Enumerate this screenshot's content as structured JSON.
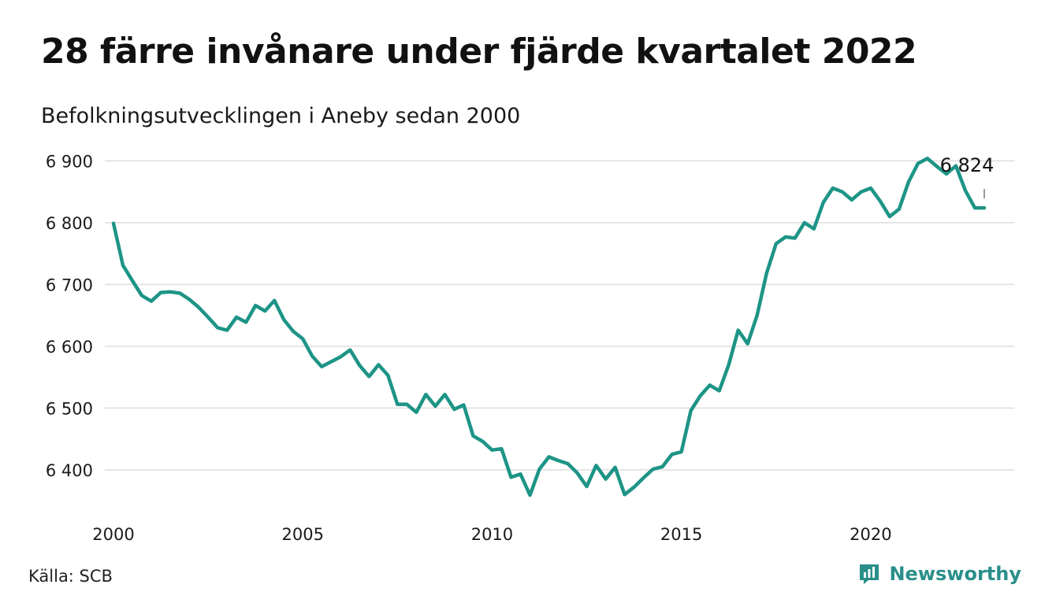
{
  "header": {
    "title": "28 färre invånare under fjärde kvartalet 2022",
    "subtitle": "Befolkningsutvecklingen i Aneby sedan 2000"
  },
  "footer": {
    "source": "Källa: SCB",
    "brand": "Newsworthy",
    "brand_icon": "newsworthy-logo-icon",
    "brand_color": "#2a8f8a"
  },
  "chart_data": {
    "type": "line",
    "title": "28 färre invånare under fjärde kvartalet 2022",
    "subtitle": "Befolkningsutvecklingen i Aneby sedan 2000",
    "xlim": [
      2000,
      2023.25
    ],
    "ylim": [
      6345,
      6912
    ],
    "x_ticks": [
      2000,
      2005,
      2010,
      2015,
      2020
    ],
    "y_ticks": [
      6400,
      6500,
      6600,
      6700,
      6800,
      6900
    ],
    "y_tick_labels": [
      "6 400",
      "6 500",
      "6 600",
      "6 700",
      "6 800",
      "6 900"
    ],
    "grid": "horizontal",
    "line_color": "#1d9486",
    "end_label": "6 824",
    "series": [
      {
        "x": [
          2000.0,
          2000.25,
          2000.5,
          2000.75,
          2001.0,
          2001.25,
          2001.5,
          2001.75,
          2002.0,
          2002.25,
          2002.5,
          2002.75,
          2003.0,
          2003.25,
          2003.5,
          2003.75,
          2004.0,
          2004.25,
          2004.5,
          2004.75,
          2005.0,
          2005.25,
          2005.5,
          2005.75,
          2006.0,
          2006.25,
          2006.5,
          2006.75,
          2007.0,
          2007.25,
          2007.5,
          2007.75,
          2008.0,
          2008.25,
          2008.5,
          2008.75,
          2009.0,
          2009.25,
          2009.5,
          2009.75,
          2010.0,
          2010.25,
          2010.5,
          2010.75,
          2011.0,
          2011.25,
          2011.5,
          2011.75,
          2012.0,
          2012.25,
          2012.5,
          2012.75,
          2013.0,
          2013.25,
          2013.5,
          2013.75,
          2014.0,
          2014.25,
          2014.5,
          2014.75,
          2015.0,
          2015.25,
          2015.5,
          2015.75,
          2016.0,
          2016.25,
          2016.5,
          2016.75,
          2017.0,
          2017.25,
          2017.5,
          2017.75,
          2018.0,
          2018.25,
          2018.5,
          2018.75,
          2019.0,
          2019.25,
          2019.5,
          2019.75,
          2020.0,
          2020.25,
          2020.5,
          2020.75,
          2021.0,
          2021.25,
          2021.5,
          2021.75,
          2022.0,
          2022.25,
          2022.5,
          2022.75,
          2023.0
        ],
        "y": [
          6799,
          6731,
          6706,
          6682,
          6673,
          6687,
          6688,
          6686,
          6676,
          6663,
          6647,
          6630,
          6626,
          6647,
          6639,
          6666,
          6657,
          6674,
          6643,
          6624,
          6612,
          6584,
          6567,
          6575,
          6583,
          6594,
          6569,
          6551,
          6570,
          6553,
          6506,
          6506,
          6493,
          6522,
          6503,
          6522,
          6498,
          6505,
          6455,
          6446,
          6432,
          6434,
          6388,
          6393,
          6359,
          6401,
          6421,
          6415,
          6410,
          6395,
          6373,
          6407,
          6385,
          6404,
          6360,
          6372,
          6387,
          6401,
          6405,
          6425,
          6429,
          6496,
          6520,
          6537,
          6528,
          6570,
          6626,
          6604,
          6650,
          6718,
          6766,
          6777,
          6775,
          6800,
          6790,
          6833,
          6856,
          6850,
          6837,
          6850,
          6856,
          6835,
          6810,
          6822,
          6866,
          6896,
          6904,
          6891,
          6879,
          6892,
          6852,
          6824,
          6824
        ]
      }
    ]
  }
}
